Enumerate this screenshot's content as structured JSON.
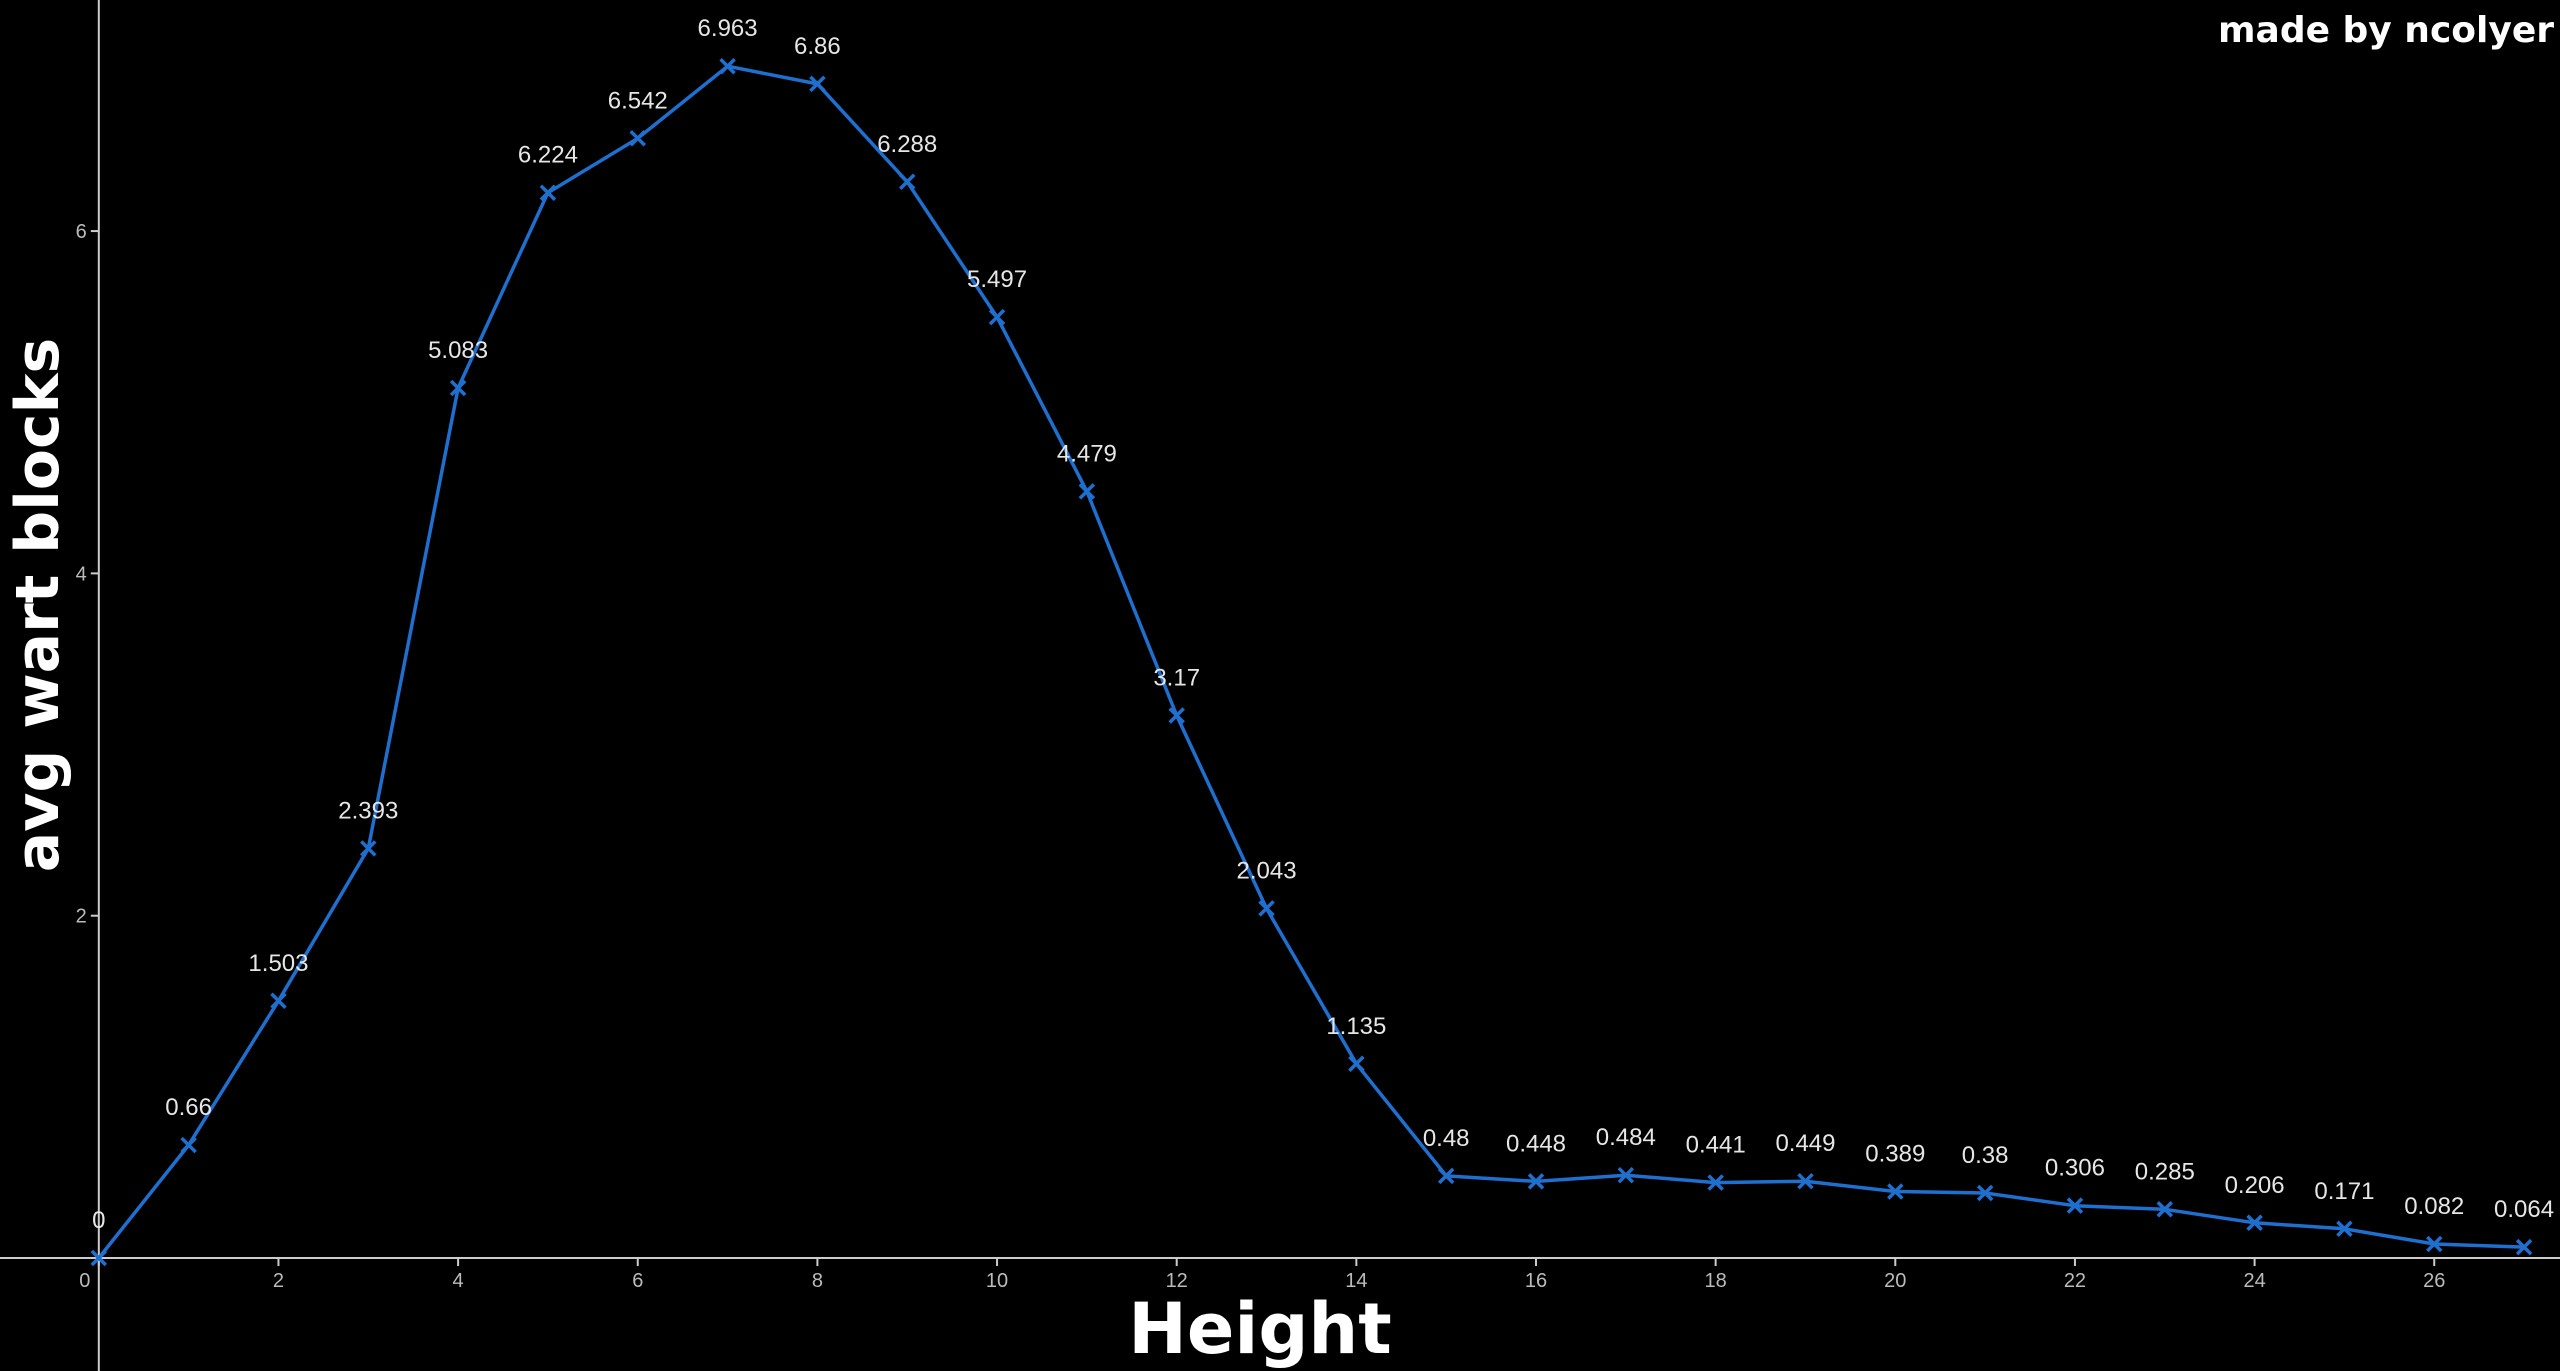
{
  "credit": "made by ncolyer",
  "chart_data": {
    "type": "line",
    "title": "",
    "xlabel": "Height",
    "ylabel": "avg wart blocks",
    "x": [
      0,
      1,
      2,
      3,
      4,
      5,
      6,
      7,
      8,
      9,
      10,
      11,
      12,
      13,
      14,
      15,
      16,
      17,
      18,
      19,
      20,
      21,
      22,
      23,
      24,
      25,
      26,
      27
    ],
    "series": [
      {
        "values": [
          0,
          0.66,
          1.503,
          2.393,
          5.083,
          6.224,
          6.542,
          6.963,
          6.86,
          6.288,
          5.497,
          4.479,
          3.17,
          2.043,
          1.135,
          0.48,
          0.448,
          0.484,
          0.441,
          0.449,
          0.389,
          0.38,
          0.306,
          0.285,
          0.206,
          0.171,
          0.082,
          0.064
        ],
        "labels": [
          "0",
          "0.66",
          "1.503",
          "2.393",
          "5.083",
          "6.224",
          "6.542",
          "6.963",
          "6.86",
          "6.288",
          "5.497",
          "4.479",
          "3.17",
          "2.043",
          "1.135",
          "0.48",
          "0.448",
          "0.484",
          "0.441",
          "0.449",
          "0.389",
          "0.38",
          "0.306",
          "0.285",
          "0.206",
          "0.171",
          "0.082",
          "0.064"
        ],
        "color": "#1f6fcf",
        "marker": "x"
      }
    ],
    "xticks": [
      0,
      2,
      4,
      6,
      8,
      10,
      12,
      14,
      16,
      18,
      20,
      22,
      24,
      26
    ],
    "xtick_labels": [
      "0",
      "2",
      "4",
      "6",
      "8",
      "10",
      "12",
      "14",
      "16",
      "18",
      "20",
      "22",
      "24",
      "26"
    ],
    "yticks": [
      2,
      4,
      6
    ],
    "ytick_labels": [
      "2",
      "4",
      "6"
    ],
    "xlim": [
      -1.1,
      27.4
    ],
    "ylim": [
      -0.66,
      7.35
    ],
    "grid": false,
    "legend": "none",
    "background": "#000000",
    "axis_color": "#cccccc"
  }
}
